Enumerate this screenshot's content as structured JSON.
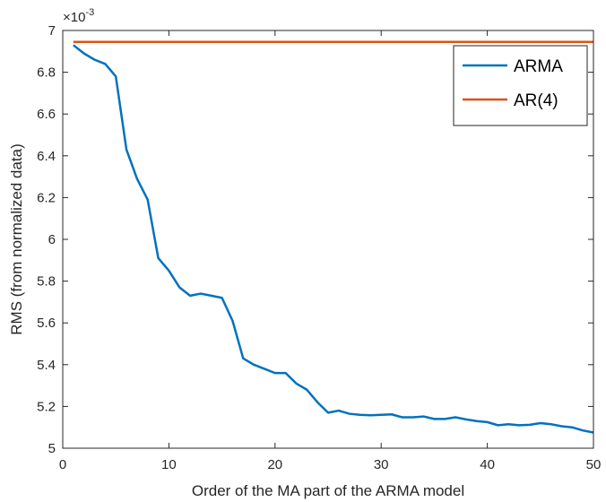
{
  "chart_data": {
    "type": "line",
    "xlabel": "Order of the MA part of the ARMA model",
    "ylabel": "RMS (from normalized data)",
    "y_exponent_label": "×10",
    "y_exponent_power": "-3",
    "xlim": [
      0,
      50
    ],
    "ylim": [
      5,
      7
    ],
    "x_ticks": [
      0,
      10,
      20,
      30,
      40,
      50
    ],
    "x_tick_labels": [
      "0",
      "10",
      "20",
      "30",
      "40",
      "50"
    ],
    "y_ticks": [
      5,
      5.2,
      5.4,
      5.6,
      5.8,
      6,
      6.2,
      6.4,
      6.6,
      6.8,
      7
    ],
    "y_tick_labels": [
      "5",
      "5.2",
      "5.4",
      "5.6",
      "5.8",
      "6",
      "6.2",
      "6.4",
      "6.6",
      "6.8",
      "7"
    ],
    "grid": false,
    "legend_position": "top-right",
    "series": [
      {
        "name": "ARMA",
        "color": "#0072BD",
        "x": [
          1,
          2,
          3,
          4,
          5,
          6,
          7,
          8,
          9,
          10,
          11,
          12,
          13,
          14,
          15,
          16,
          17,
          18,
          19,
          20,
          21,
          22,
          23,
          24,
          25,
          26,
          27,
          28,
          29,
          30,
          31,
          32,
          33,
          34,
          35,
          36,
          37,
          38,
          39,
          40,
          41,
          42,
          43,
          44,
          45,
          46,
          47,
          48,
          49,
          50
        ],
        "values": [
          6.93,
          6.89,
          6.86,
          6.84,
          6.78,
          6.43,
          6.29,
          6.19,
          5.91,
          5.85,
          5.77,
          5.73,
          5.74,
          5.73,
          5.72,
          5.61,
          5.43,
          5.4,
          5.38,
          5.36,
          5.36,
          5.31,
          5.28,
          5.22,
          5.17,
          5.18,
          5.165,
          5.16,
          5.158,
          5.16,
          5.162,
          5.148,
          5.148,
          5.152,
          5.14,
          5.14,
          5.148,
          5.138,
          5.13,
          5.125,
          5.11,
          5.115,
          5.11,
          5.112,
          5.12,
          5.115,
          5.105,
          5.1,
          5.085,
          5.075
        ]
      },
      {
        "name": "AR(4)",
        "color": "#D95319",
        "x": [
          1,
          50
        ],
        "values": [
          6.945,
          6.945
        ]
      }
    ]
  }
}
